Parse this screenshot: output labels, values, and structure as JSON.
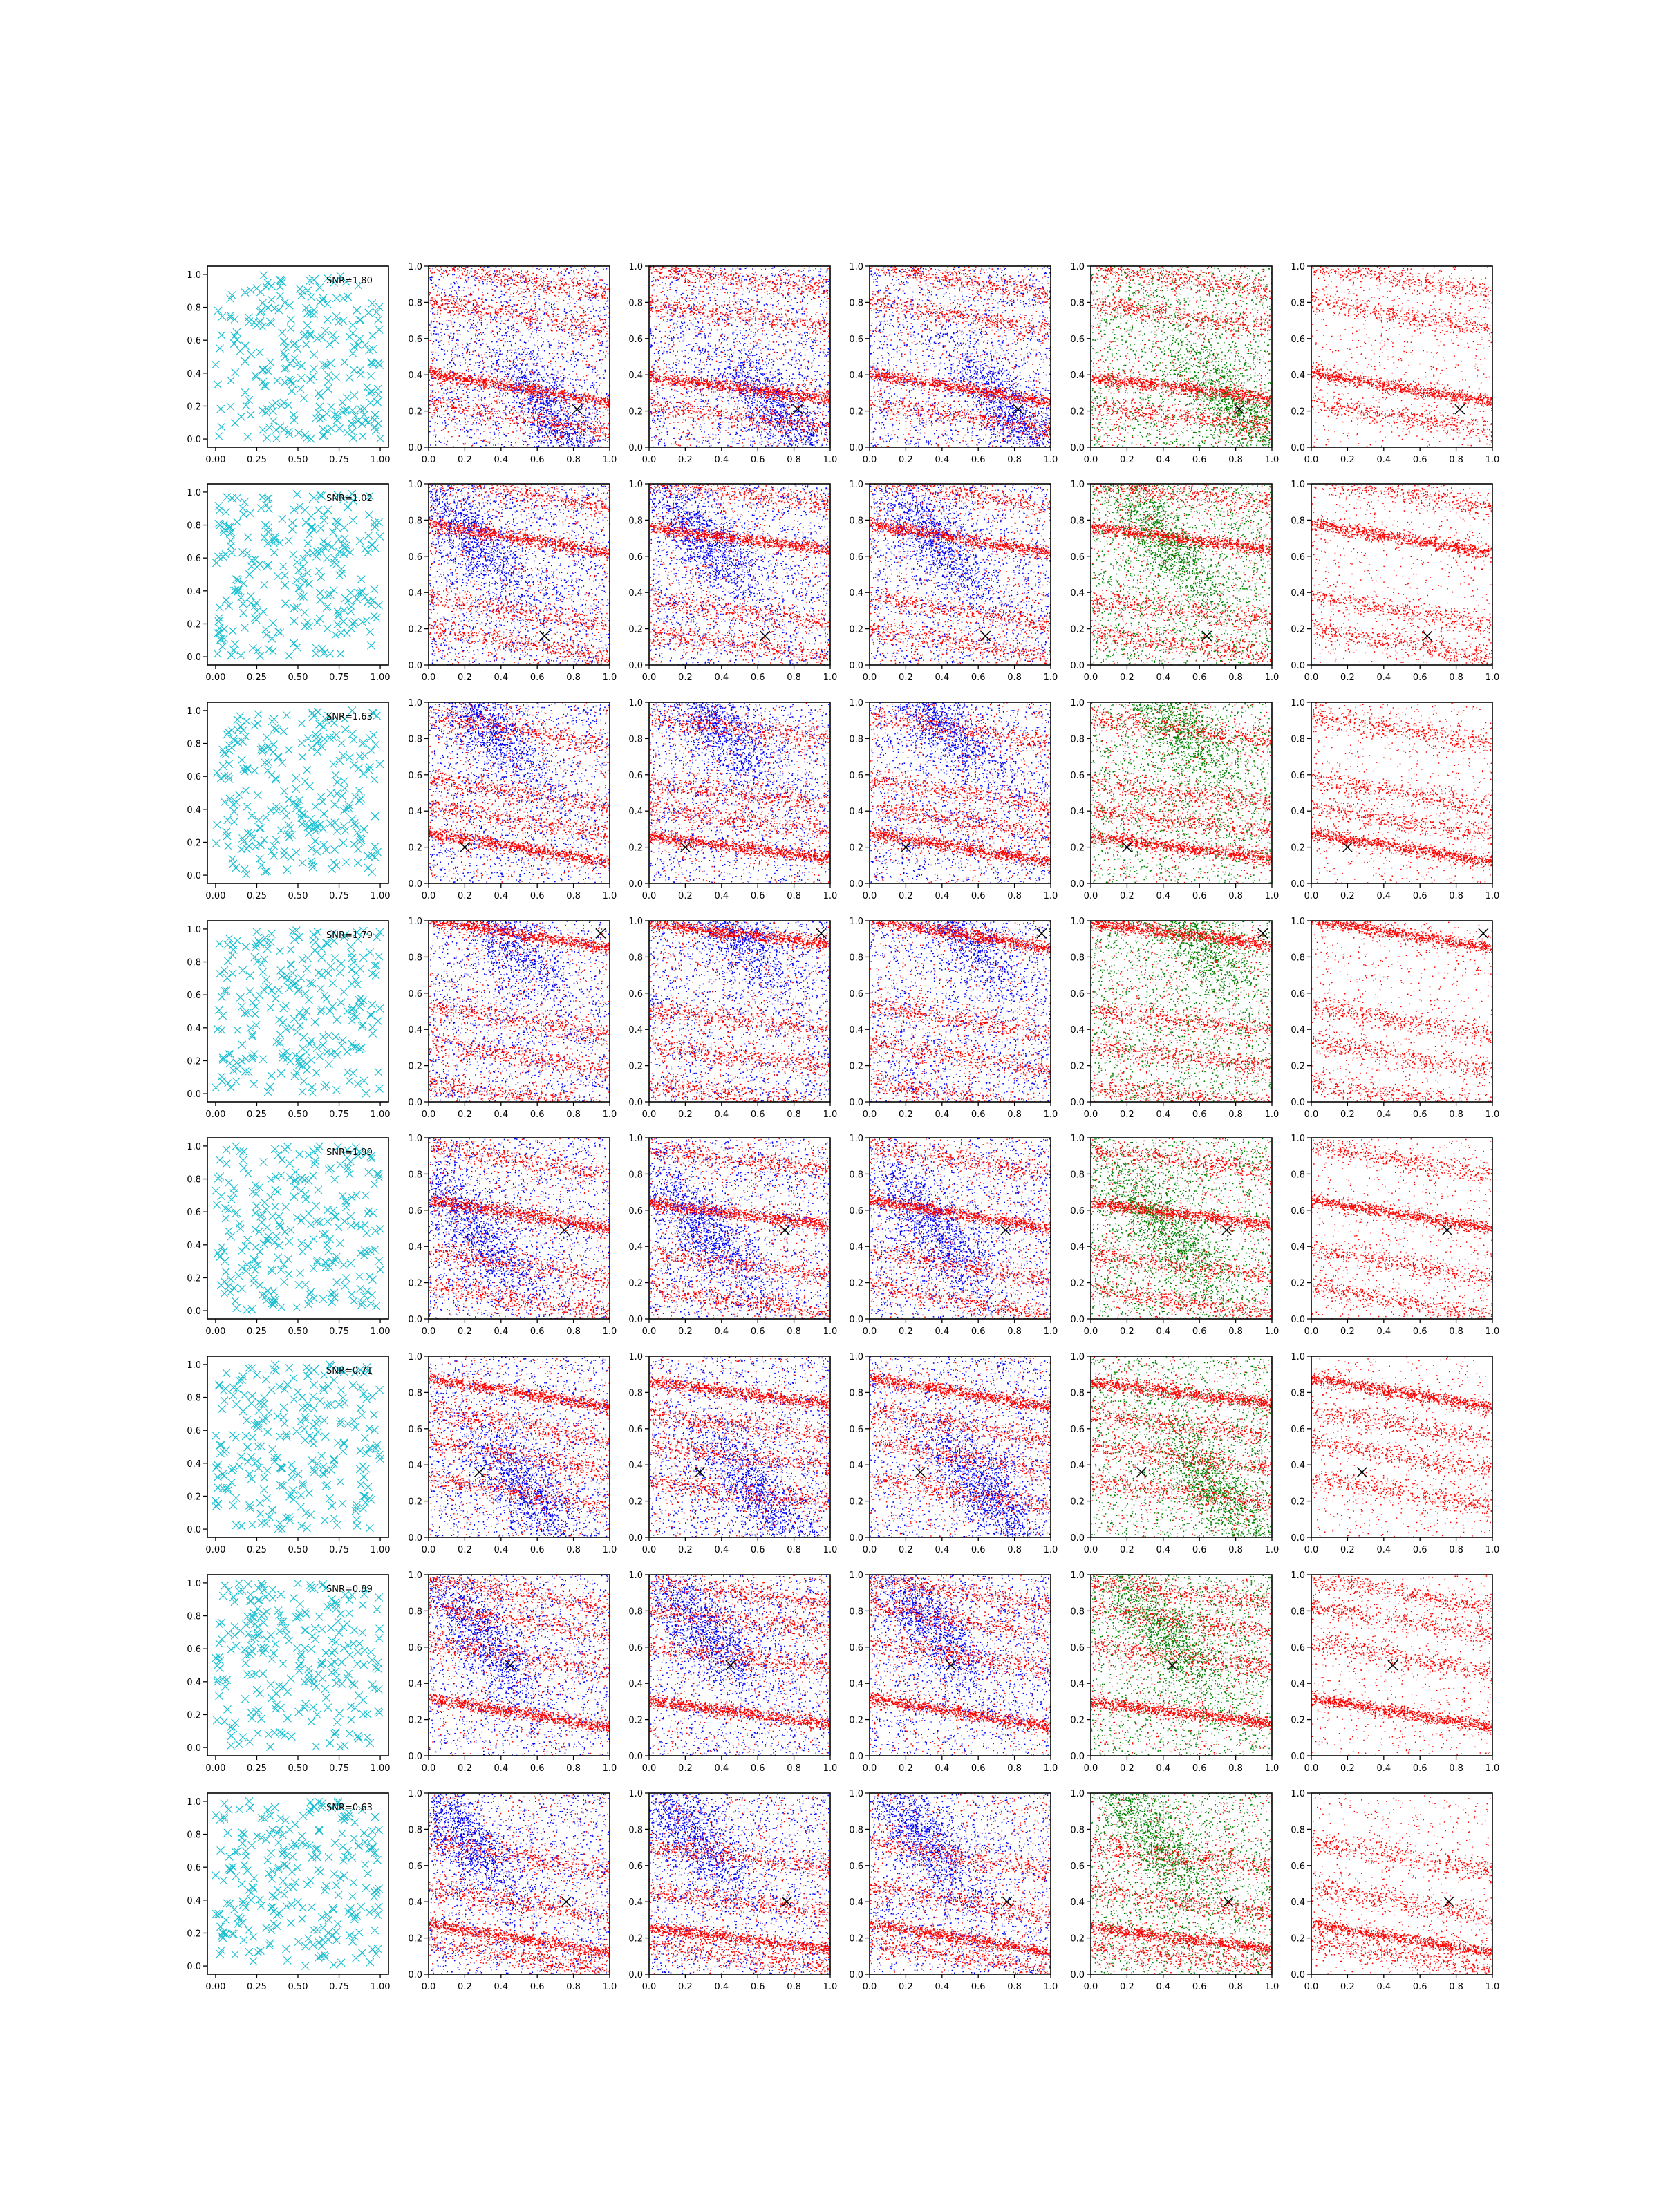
{
  "figure": {
    "rows": 8,
    "cols": 6,
    "colors": {
      "cross": "#17becf",
      "signal": "#ff0000",
      "noise_blue": "#0000ff",
      "noise_green": "#008000",
      "marker": "#000000",
      "axes": "#000000"
    }
  },
  "chart_data": {
    "type": "scatter",
    "grid": false,
    "xlim": [
      -0.05,
      1.05
    ],
    "ylim": [
      -0.05,
      1.05
    ],
    "first_column_ticks": [
      "0.00",
      "0.25",
      "0.50",
      "0.75",
      "1.00"
    ],
    "first_column_yticks": [
      "0.0",
      "0.2",
      "0.4",
      "0.6",
      "0.8",
      "1.0"
    ],
    "panel_xlim": [
      0,
      1
    ],
    "panel_ylim": [
      0,
      1
    ],
    "panel_ticks": [
      "0.0",
      "0.2",
      "0.4",
      "0.6",
      "0.8",
      "1.0"
    ],
    "legend_placement": "upper right",
    "rows": [
      {
        "snr_label": "SNR=1.80",
        "marker": [
          0.82,
          0.21
        ],
        "bands": [
          0.33,
          0.17,
          0.73,
          0.93
        ],
        "blob": [
          0.72,
          0.2
        ]
      },
      {
        "snr_label": "SNR=1.02",
        "marker": [
          0.64,
          0.16
        ],
        "bands": [
          0.7,
          0.3,
          0.95,
          0.12
        ],
        "blob": [
          0.3,
          0.7
        ]
      },
      {
        "snr_label": "SNR=1.63",
        "marker": [
          0.2,
          0.2
        ],
        "bands": [
          0.2,
          0.5,
          0.85,
          0.35
        ],
        "blob": [
          0.35,
          0.9
        ]
      },
      {
        "snr_label": "SNR=1.79",
        "marker": [
          0.95,
          0.93
        ],
        "bands": [
          0.93,
          0.03,
          0.45,
          0.25
        ],
        "blob": [
          0.45,
          0.95
        ]
      },
      {
        "snr_label": "SNR=1.99",
        "marker": [
          0.75,
          0.49
        ],
        "bands": [
          0.58,
          0.3,
          0.88,
          0.1
        ],
        "blob": [
          0.3,
          0.5
        ]
      },
      {
        "snr_label": "SNR=0.71",
        "marker": [
          0.28,
          0.36
        ],
        "bands": [
          0.8,
          0.45,
          0.25,
          0.62
        ],
        "blob": [
          0.6,
          0.25
        ]
      },
      {
        "snr_label": "SNR=0.89",
        "marker": [
          0.45,
          0.5
        ],
        "bands": [
          0.24,
          0.55,
          0.75,
          0.9
        ],
        "blob": [
          0.3,
          0.7
        ]
      },
      {
        "snr_label": "SNR=0.63",
        "marker": [
          0.76,
          0.4
        ],
        "bands": [
          0.2,
          0.1,
          0.65,
          0.4
        ],
        "blob": [
          0.25,
          0.75
        ]
      }
    ]
  }
}
